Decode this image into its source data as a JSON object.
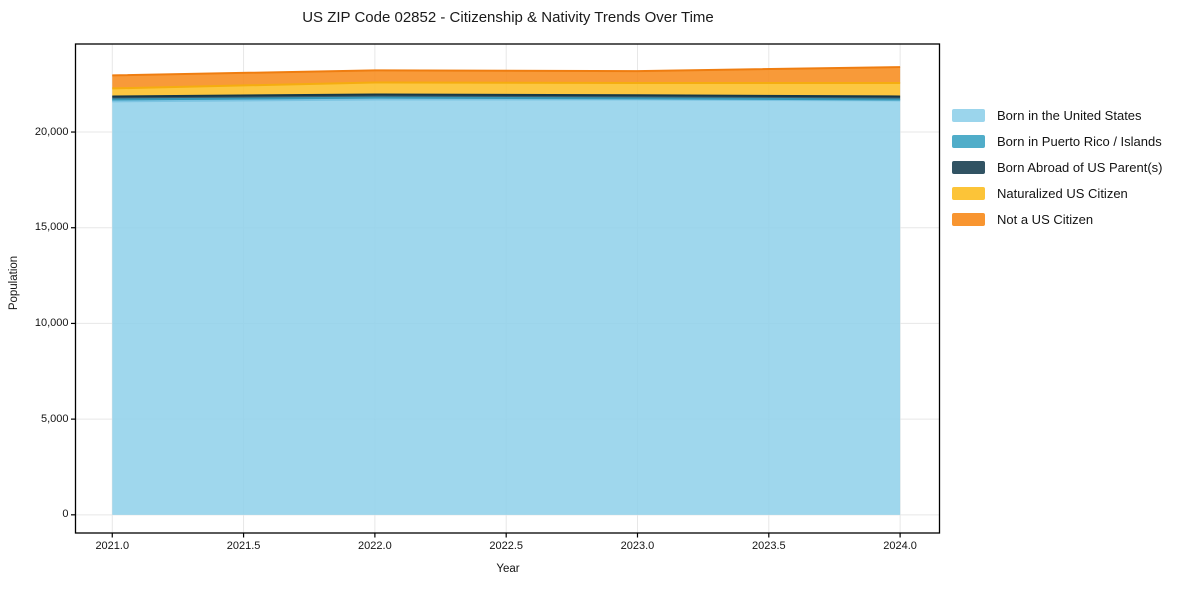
{
  "title": "US ZIP Code 02852 - Citizenship & Nativity Trends Over Time",
  "chart_data": {
    "type": "area",
    "stacked": true,
    "title": "US ZIP Code 02852 - Citizenship & Nativity Trends Over Time",
    "xlabel": "Year",
    "ylabel": "Population",
    "x": [
      2021,
      2022,
      2023,
      2024
    ],
    "series": [
      {
        "name": "Born in the United States",
        "color": "#92d1ea",
        "line_color": "#7cc4e2",
        "values": [
          21600,
          21700,
          21700,
          21650
        ]
      },
      {
        "name": "Born in Puerto Rico / Islands",
        "color": "#41a6c4",
        "line_color": "#3697b6",
        "values": [
          100,
          100,
          60,
          50
        ]
      },
      {
        "name": "Born Abroad of US Parent(s)",
        "color": "#1f4456",
        "line_color": "#163848",
        "values": [
          160,
          160,
          160,
          160
        ]
      },
      {
        "name": "Naturalized US Citizen",
        "color": "#fcbf27",
        "line_color": "#f5ad0f",
        "values": [
          420,
          630,
          640,
          700
        ]
      },
      {
        "name": "Not a US Citizen",
        "color": "#f78c1e",
        "line_color": "#ef7d10",
        "values": [
          680,
          630,
          625,
          835
        ]
      }
    ],
    "x_tick_values": [
      2021.0,
      2021.5,
      2022.0,
      2022.5,
      2023.0,
      2023.5,
      2024.0
    ],
    "x_tick_labels": [
      "2021.0",
      "2021.5",
      "2022.0",
      "2022.5",
      "2023.0",
      "2023.5",
      "2024.0"
    ],
    "y_tick_values": [
      0,
      5000,
      10000,
      15000,
      20000
    ],
    "y_tick_labels": [
      "0",
      "5,000",
      "10,000",
      "15,000",
      "20,000"
    ],
    "xlim": [
      2020.86,
      2024.15
    ],
    "ylim": [
      -950,
      24600
    ],
    "grid": true,
    "grid_color": "#e7e7e7",
    "axis_color": "#000000",
    "legend_position": "right"
  }
}
